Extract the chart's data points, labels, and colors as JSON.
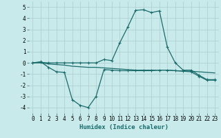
{
  "line1_x": [
    0,
    1,
    2,
    3,
    4,
    5,
    6,
    7,
    8,
    9,
    10,
    11,
    12,
    13,
    14,
    15,
    16,
    17,
    18,
    19,
    20,
    21,
    22,
    23
  ],
  "line1_y": [
    0.0,
    0.05,
    0.0,
    0.0,
    0.0,
    0.0,
    0.0,
    0.0,
    0.0,
    0.3,
    0.2,
    1.8,
    3.2,
    4.7,
    4.75,
    4.5,
    4.65,
    1.4,
    0.0,
    -0.65,
    -0.65,
    -1.1,
    -1.5,
    -1.5
  ],
  "line2_x": [
    0,
    1,
    2,
    3,
    4,
    5,
    6,
    7,
    8,
    9,
    10,
    11,
    12,
    13,
    14,
    15,
    16,
    17,
    18,
    19,
    20,
    21,
    22,
    23
  ],
  "line2_y": [
    0.0,
    0.1,
    -0.4,
    -0.8,
    -0.85,
    -3.3,
    -3.8,
    -4.0,
    -3.0,
    -0.6,
    -0.65,
    -0.7,
    -0.7,
    -0.7,
    -0.7,
    -0.7,
    -0.65,
    -0.65,
    -0.7,
    -0.75,
    -0.8,
    -1.2,
    -1.55,
    -1.55
  ],
  "line3_x": [
    0,
    1,
    2,
    3,
    4,
    5,
    6,
    7,
    8,
    9,
    10,
    11,
    12,
    13,
    14,
    15,
    16,
    17,
    18,
    19,
    20,
    21,
    22,
    23
  ],
  "line3_y": [
    0.0,
    0.0,
    -0.1,
    -0.15,
    -0.2,
    -0.3,
    -0.35,
    -0.4,
    -0.4,
    -0.45,
    -0.5,
    -0.55,
    -0.6,
    -0.65,
    -0.65,
    -0.65,
    -0.65,
    -0.65,
    -0.7,
    -0.72,
    -0.75,
    -0.8,
    -0.85,
    -0.9
  ],
  "line_color": "#1a6b6b",
  "bg_color": "#c8eaea",
  "grid_color": "#aacccc",
  "xlabel": "Humidex (Indice chaleur)",
  "xlim": [
    -0.5,
    23.5
  ],
  "ylim": [
    -4.5,
    5.5
  ],
  "yticks": [
    -4,
    -3,
    -2,
    -1,
    0,
    1,
    2,
    3,
    4,
    5
  ],
  "xticks": [
    0,
    1,
    2,
    3,
    4,
    5,
    6,
    7,
    8,
    9,
    10,
    11,
    12,
    13,
    14,
    15,
    16,
    17,
    18,
    19,
    20,
    21,
    22,
    23
  ],
  "xlabel_fontsize": 6.5,
  "tick_fontsize": 5.5
}
